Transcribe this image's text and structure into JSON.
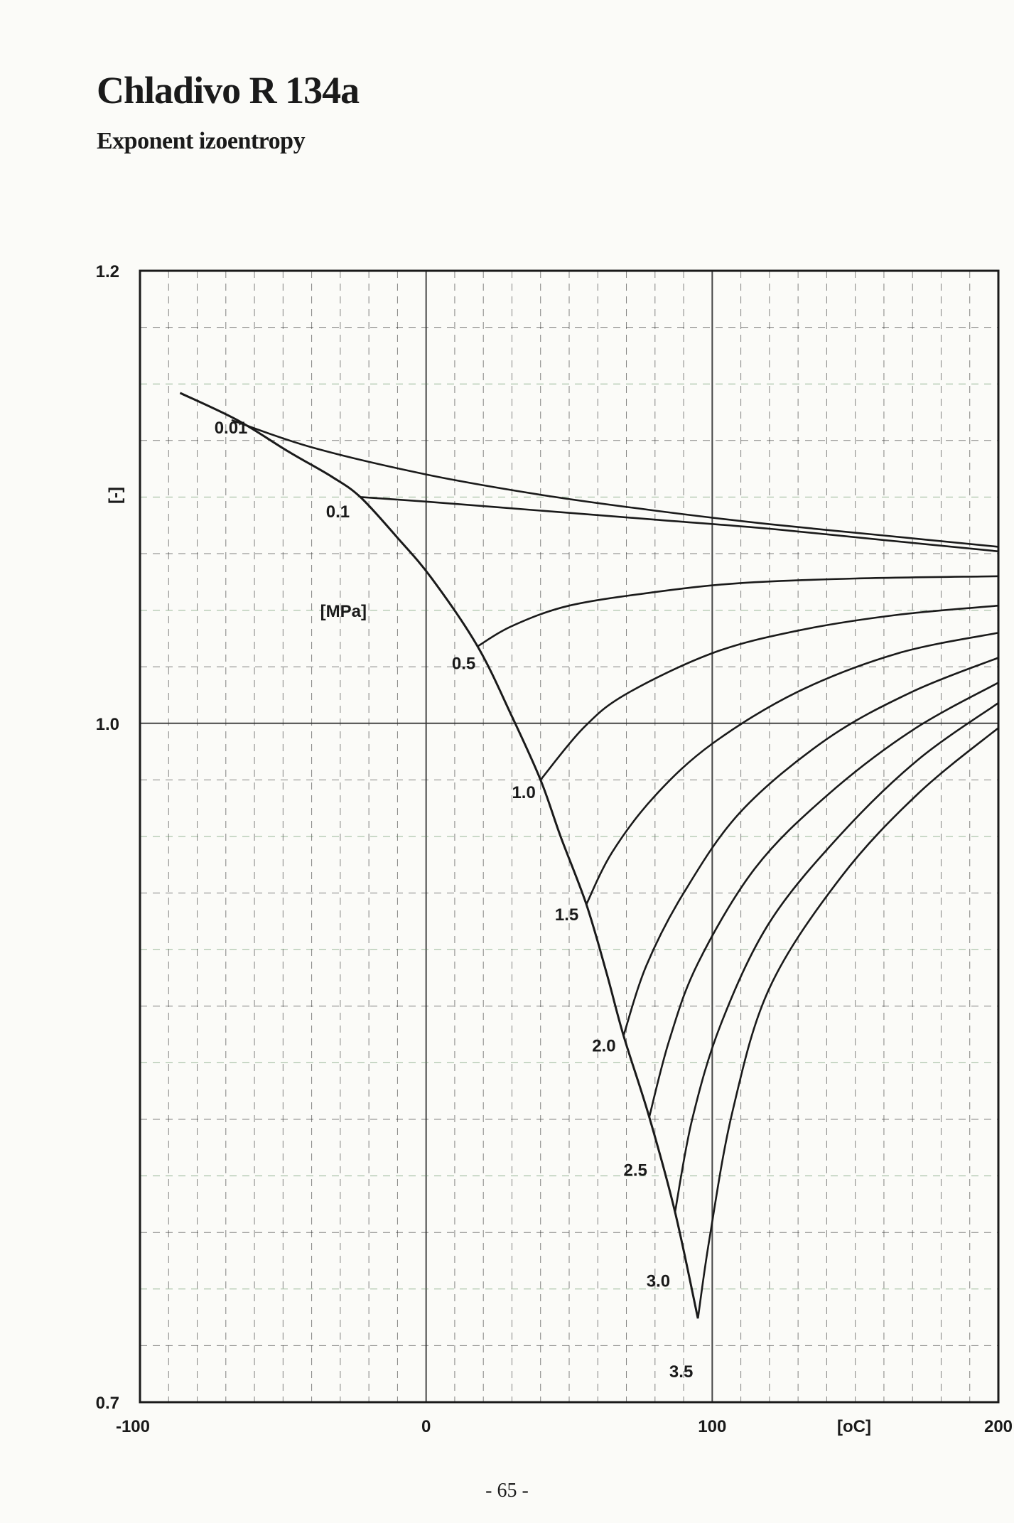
{
  "page": {
    "title": "Chladivo  R 134a",
    "subtitle": "Exponent izoentropy",
    "page_number": "- 65 -"
  },
  "chart_data": {
    "type": "line",
    "title": "Chladivo  R 134a",
    "subtitle": "Exponent izoentropy",
    "xlabel": "[oC]",
    "ylabel": "[-]",
    "series_unit_label": "[MPa]",
    "xlim": [
      -100,
      200
    ],
    "ylim": [
      0.7,
      1.2
    ],
    "x_ticks": [
      "-100",
      "0",
      "100",
      "200"
    ],
    "y_ticks": [
      "1.2",
      "1.0",
      "0.7"
    ],
    "x_tick_values": [
      -100,
      0,
      100,
      200
    ],
    "y_tick_values": [
      1.2,
      1.0,
      0.7
    ],
    "grid": true,
    "colors": {
      "curves": "#1a1a1a",
      "grid": "#333333",
      "grid_tinted": "#5a8a5a"
    },
    "saturation_line": [
      [
        -86,
        1.146
      ],
      [
        -66,
        1.134
      ],
      [
        -48,
        1.12
      ],
      [
        -33,
        1.109
      ],
      [
        -23,
        1.1
      ],
      [
        -10,
        1.082
      ],
      [
        2,
        1.064
      ],
      [
        18,
        1.034
      ],
      [
        30,
        1.003
      ],
      [
        40,
        0.975
      ],
      [
        47,
        0.95
      ],
      [
        56,
        0.92
      ],
      [
        63,
        0.89
      ],
      [
        69,
        0.862
      ],
      [
        78,
        0.826
      ],
      [
        87,
        0.784
      ],
      [
        95,
        0.737
      ]
    ],
    "series": [
      {
        "name": "0.01",
        "x": [
          -68,
          -40,
          0,
          40,
          80,
          120,
          160,
          200
        ],
        "y": [
          1.134,
          1.122,
          1.11,
          1.101,
          1.094,
          1.088,
          1.083,
          1.078
        ]
      },
      {
        "name": "0.1",
        "x": [
          -23,
          0,
          40,
          80,
          120,
          160,
          200
        ],
        "y": [
          1.1,
          1.098,
          1.094,
          1.09,
          1.086,
          1.081,
          1.076
        ]
      },
      {
        "name": "0.5",
        "x": [
          18,
          30,
          50,
          80,
          110,
          150,
          200
        ],
        "y": [
          1.034,
          1.043,
          1.052,
          1.058,
          1.062,
          1.064,
          1.065
        ]
      },
      {
        "name": "1.0",
        "x": [
          40,
          55,
          70,
          100,
          130,
          165,
          200
        ],
        "y": [
          0.975,
          0.998,
          1.013,
          1.031,
          1.041,
          1.048,
          1.052
        ]
      },
      {
        "name": "1.5",
        "x": [
          56,
          65,
          80,
          100,
          130,
          165,
          200
        ],
        "y": [
          0.92,
          0.943,
          0.968,
          0.991,
          1.014,
          1.031,
          1.04
        ]
      },
      {
        "name": "2.0",
        "x": [
          69,
          77,
          90,
          110,
          140,
          170,
          200
        ],
        "y": [
          0.862,
          0.893,
          0.925,
          0.961,
          0.993,
          1.014,
          1.029
        ]
      },
      {
        "name": "2.5",
        "x": [
          78,
          85,
          95,
          115,
          140,
          170,
          200
        ],
        "y": [
          0.826,
          0.86,
          0.894,
          0.936,
          0.968,
          0.997,
          1.018
        ]
      },
      {
        "name": "3.0",
        "x": [
          87,
          93,
          103,
          120,
          145,
          172,
          200
        ],
        "y": [
          0.784,
          0.825,
          0.867,
          0.912,
          0.951,
          0.984,
          1.009
        ]
      },
      {
        "name": "3.5",
        "x": [
          95,
          99,
          107,
          120,
          145,
          172,
          200
        ],
        "y": [
          0.737,
          0.772,
          0.828,
          0.883,
          0.932,
          0.969,
          0.998
        ]
      }
    ],
    "annotations": [
      {
        "text": "0.01",
        "x": -74,
        "y": 1.128
      },
      {
        "text": "0.1",
        "x": -35,
        "y": 1.091
      },
      {
        "text": "[MPa]",
        "x": -37,
        "y": 1.047
      },
      {
        "text": "0.5",
        "x": 9,
        "y": 1.024
      },
      {
        "text": "1.0",
        "x": 30,
        "y": 0.967
      },
      {
        "text": "1.5",
        "x": 45,
        "y": 0.913
      },
      {
        "text": "2.0",
        "x": 58,
        "y": 0.855
      },
      {
        "text": "2.5",
        "x": 69,
        "y": 0.8
      },
      {
        "text": "3.0",
        "x": 77,
        "y": 0.751
      },
      {
        "text": "3.5",
        "x": 85,
        "y": 0.711
      }
    ]
  }
}
